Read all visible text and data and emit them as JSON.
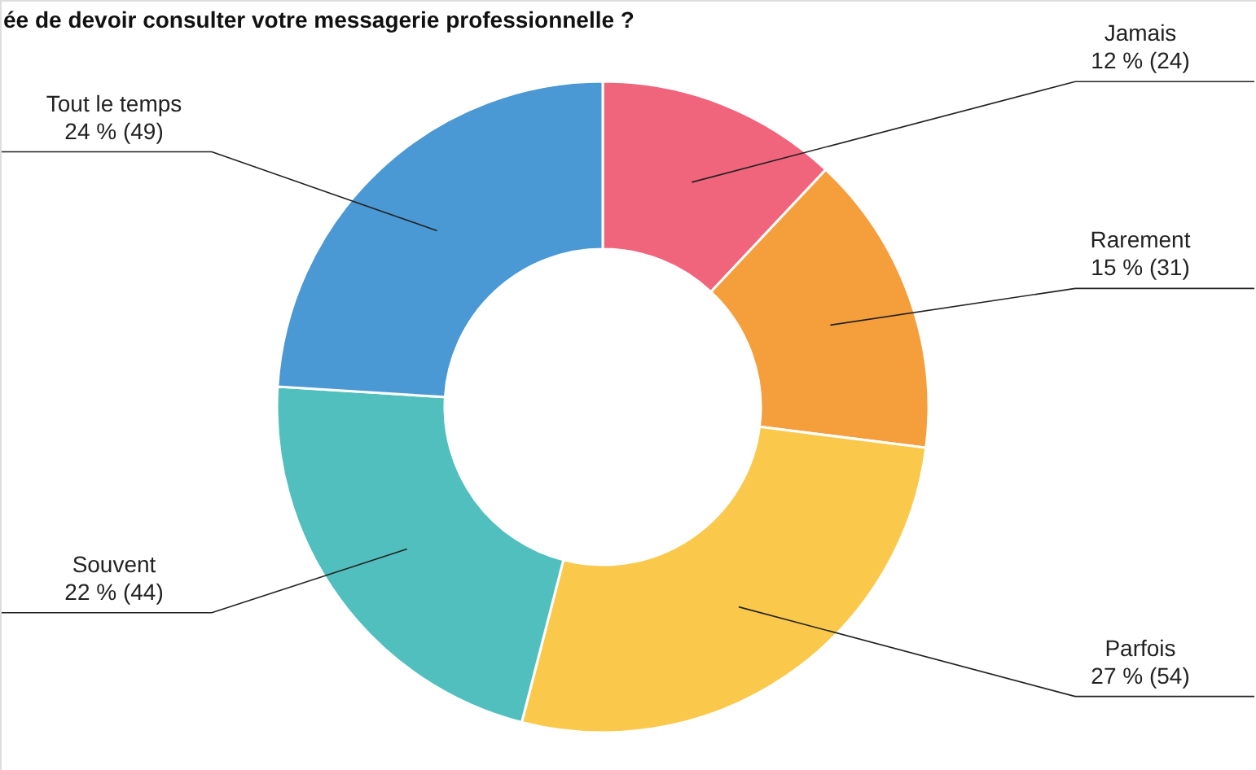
{
  "chart_data": {
    "type": "donut",
    "title": "ée de devoir consulter votre messagerie professionnelle ?",
    "categories": [
      "Jamais",
      "Rarement",
      "Parfois",
      "Souvent",
      "Tout le temps"
    ],
    "values": [
      12,
      15,
      27,
      22,
      24
    ],
    "value_labels": [
      "12 % (24)",
      "15 % (31)",
      "27 % (54)",
      "22 % (44)",
      "24 % (49)"
    ],
    "colors": [
      "#f0647c",
      "#f59e3c",
      "#fac94c",
      "#52bfbf",
      "#4a98d4"
    ],
    "legend": false
  }
}
